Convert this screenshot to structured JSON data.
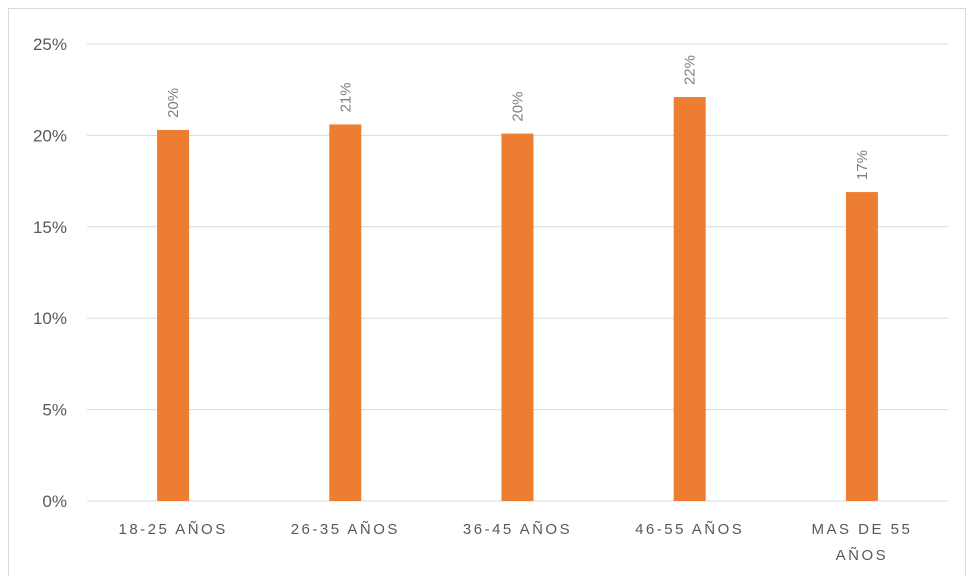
{
  "chart_data": {
    "type": "bar",
    "categories": [
      [
        "18-25 AÑOS"
      ],
      [
        "26-35 AÑOS"
      ],
      [
        "36-45 AÑOS"
      ],
      [
        "46-55 AÑOS"
      ],
      [
        "MAS DE 55",
        "AÑOS"
      ]
    ],
    "values": [
      20.3,
      20.6,
      20.1,
      22.1,
      16.9
    ],
    "data_labels": [
      "20%",
      "21%",
      "20%",
      "22%",
      "17%"
    ],
    "y_ticks": [
      "0%",
      "5%",
      "10%",
      "15%",
      "20%",
      "25%"
    ],
    "ylim": [
      0,
      25
    ],
    "grid": true,
    "legend": "none",
    "bar_color": "#ed7d31",
    "grid_color": "#d9d9d9"
  }
}
